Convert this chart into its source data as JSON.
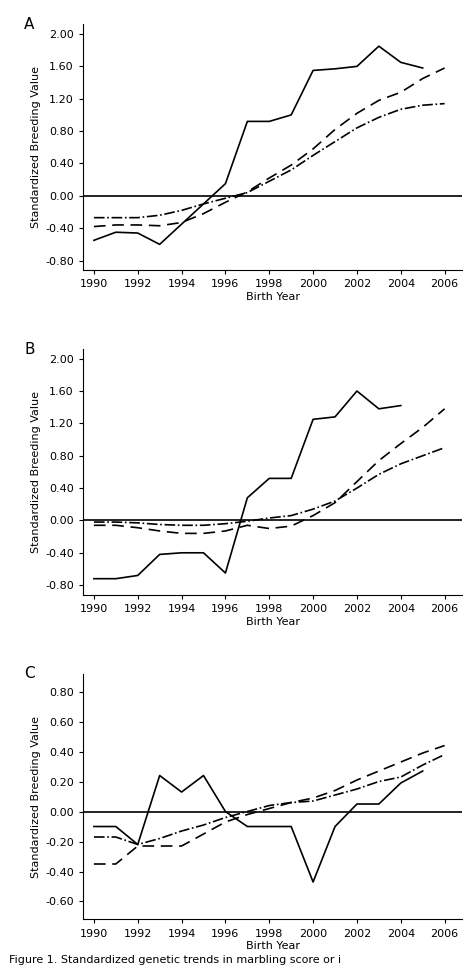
{
  "years": [
    1990,
    1991,
    1992,
    1993,
    1994,
    1995,
    1996,
    1997,
    1998,
    1999,
    2000,
    2001,
    2002,
    2003,
    2004,
    2005,
    2006
  ],
  "A_solid": [
    -0.55,
    -0.45,
    -0.46,
    -0.6,
    -0.35,
    -0.1,
    0.15,
    0.92,
    0.92,
    1.0,
    1.55,
    1.57,
    1.6,
    1.85,
    1.65,
    1.58,
    null
  ],
  "A_dashed": [
    -0.38,
    -0.36,
    -0.36,
    -0.37,
    -0.33,
    -0.22,
    -0.08,
    0.05,
    0.22,
    0.38,
    0.58,
    0.82,
    1.02,
    1.18,
    1.28,
    1.45,
    1.58
  ],
  "A_dashdot": [
    -0.27,
    -0.27,
    -0.27,
    -0.24,
    -0.18,
    -0.1,
    -0.03,
    0.04,
    0.18,
    0.32,
    0.5,
    0.67,
    0.84,
    0.97,
    1.07,
    1.12,
    1.14
  ],
  "B_solid": [
    -0.72,
    -0.72,
    -0.68,
    -0.42,
    -0.4,
    -0.4,
    -0.65,
    0.28,
    0.52,
    0.52,
    1.25,
    1.28,
    1.6,
    1.38,
    1.42,
    null,
    null
  ],
  "B_dashed": [
    -0.06,
    -0.06,
    -0.09,
    -0.13,
    -0.16,
    -0.16,
    -0.13,
    -0.06,
    -0.1,
    -0.07,
    0.06,
    0.22,
    0.48,
    0.74,
    0.95,
    1.15,
    1.38
  ],
  "B_dashdot": [
    -0.02,
    -0.02,
    -0.03,
    -0.05,
    -0.06,
    -0.06,
    -0.04,
    -0.01,
    0.03,
    0.06,
    0.14,
    0.24,
    0.4,
    0.57,
    0.7,
    0.8,
    0.9
  ],
  "C_solid": [
    -0.1,
    -0.1,
    -0.22,
    0.24,
    0.13,
    0.24,
    0.0,
    -0.1,
    -0.1,
    -0.1,
    -0.47,
    -0.1,
    0.05,
    0.05,
    0.19,
    0.27,
    null
  ],
  "C_dashed": [
    -0.35,
    -0.35,
    -0.23,
    -0.23,
    -0.23,
    -0.15,
    -0.07,
    -0.02,
    0.02,
    0.06,
    0.09,
    0.14,
    0.21,
    0.27,
    0.33,
    0.39,
    0.44
  ],
  "C_dashdot": [
    -0.17,
    -0.17,
    -0.22,
    -0.18,
    -0.13,
    -0.09,
    -0.04,
    0.0,
    0.04,
    0.06,
    0.07,
    0.11,
    0.15,
    0.2,
    0.23,
    0.31,
    0.38
  ],
  "line_color": "#000000",
  "ylabel": "Standardized Breeding Value",
  "xlabel": "Birth Year",
  "xticks": [
    1990,
    1992,
    1994,
    1996,
    1998,
    2000,
    2002,
    2004,
    2006
  ],
  "A_yticks": [
    -0.8,
    -0.4,
    0.0,
    0.4,
    0.8,
    1.2,
    1.6,
    2.0
  ],
  "A_ylim": [
    -0.92,
    2.12
  ],
  "B_yticks": [
    -0.8,
    -0.4,
    0.0,
    0.4,
    0.8,
    1.2,
    1.6,
    2.0
  ],
  "B_ylim": [
    -0.92,
    2.12
  ],
  "C_yticks": [
    -0.6,
    -0.4,
    -0.2,
    0.0,
    0.2,
    0.4,
    0.6,
    0.8
  ],
  "C_ylim": [
    -0.72,
    0.92
  ],
  "caption": "Figure 1. Standardized genetic trends in marbling score or i",
  "panel_labels": [
    "A",
    "B",
    "C"
  ]
}
